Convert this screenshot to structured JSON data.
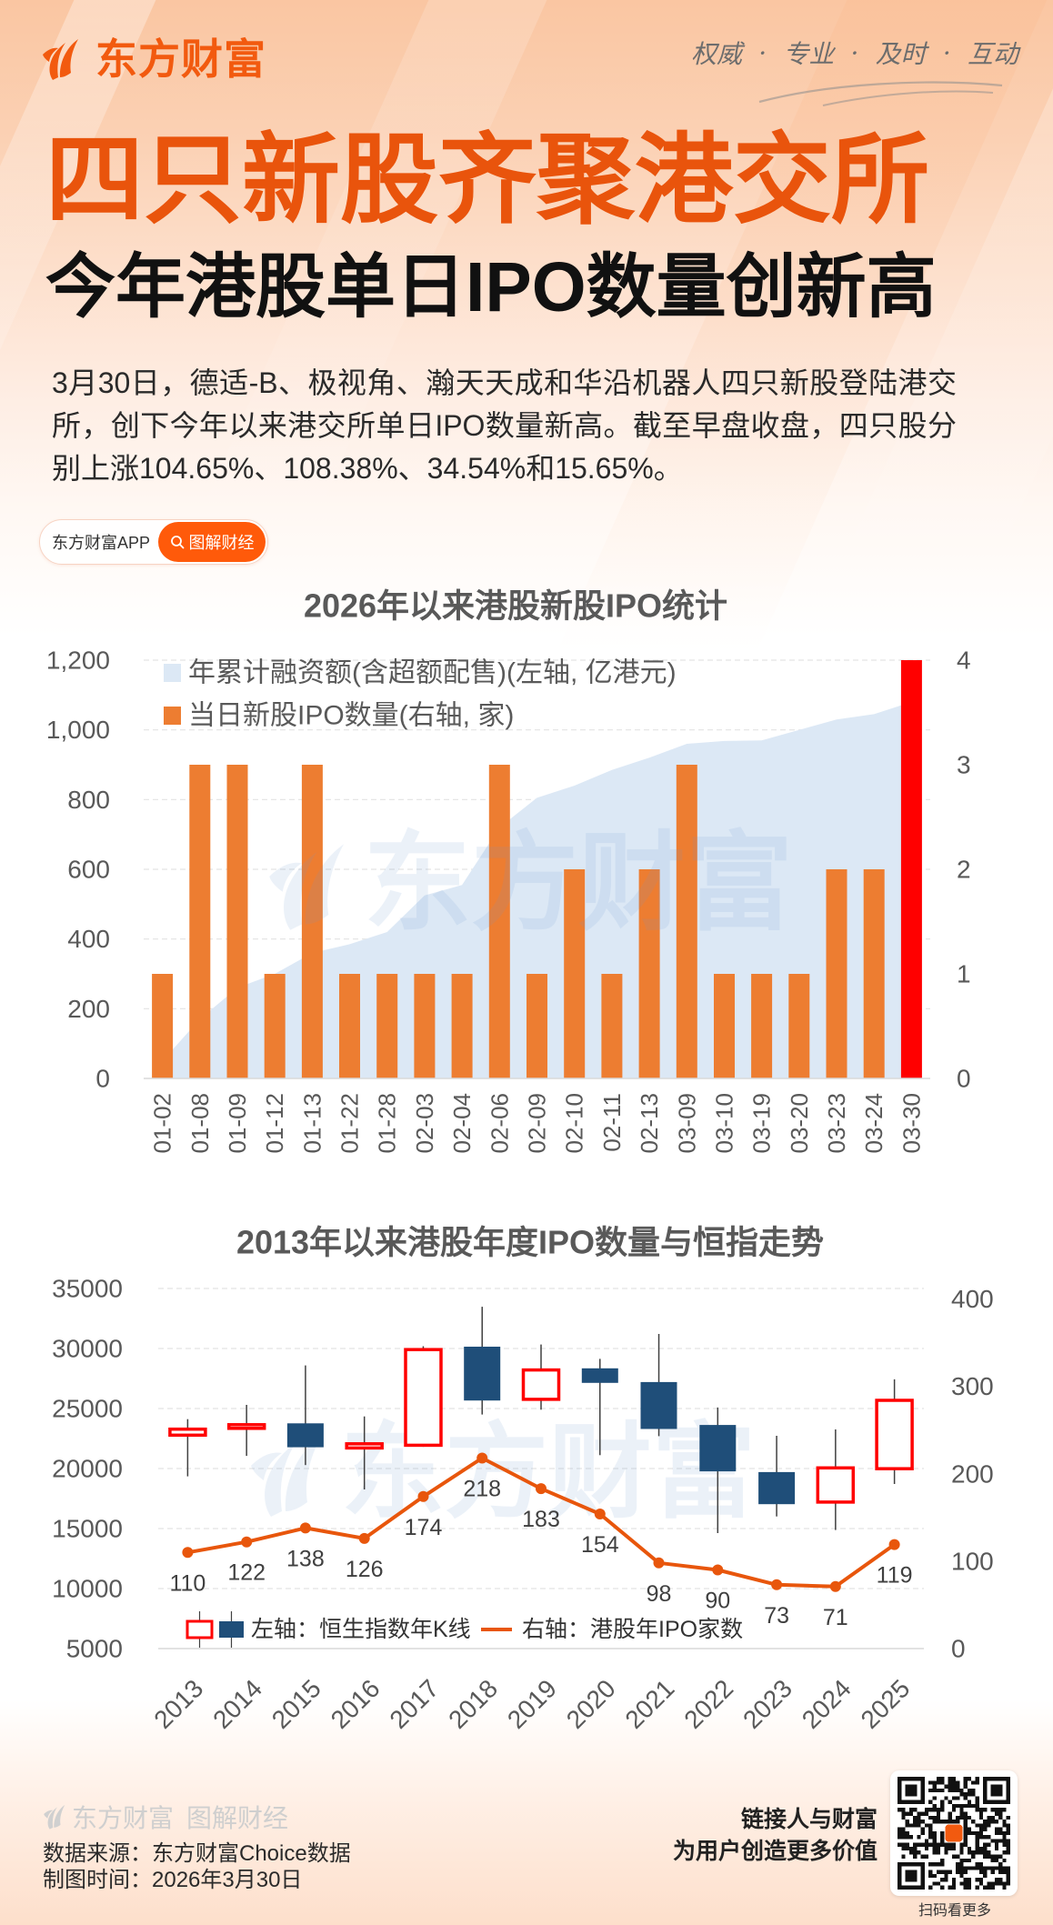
{
  "header": {
    "brand": "东方财富",
    "slogan": [
      "权威",
      "专业",
      "及时",
      "互动"
    ],
    "slogan_separator": "·"
  },
  "headline": {
    "title": "四只新股齐聚港交所",
    "subtitle": "今年港股单日IPO数量创新高"
  },
  "summary": "3月30日，德适-B、极视角、瀚天天成和华沿机器人四只新股登陆港交所，创下今年以来港交所单日IPO数量新高。截至早盘收盘，四只股分别上涨104.65%、108.38%、34.54%和15.65%。",
  "tag_pill": {
    "source": "东方财富APP",
    "column": "图解财经",
    "icon": "search-icon"
  },
  "chart_watermark": "东方财富",
  "colors": {
    "brand": "#f25a0f",
    "headline": "#e9540c",
    "pill": "#ff5a0a"
  },
  "chart_data": [
    {
      "type": "bar",
      "title": "2026年以来港股新股IPO统计",
      "xlabel": "",
      "ylabel": "",
      "categories": [
        "01-02",
        "01-08",
        "01-09",
        "01-12",
        "01-13",
        "01-22",
        "01-28",
        "02-03",
        "02-04",
        "02-06",
        "02-09",
        "02-10",
        "02-11",
        "02-13",
        "03-09",
        "03-10",
        "03-19",
        "03-20",
        "03-23",
        "03-24",
        "03-30"
      ],
      "series": [
        {
          "name": "年累计融资额(含超额配售)(左轴, 亿港元)",
          "type": "area",
          "axis": "left",
          "unit": "亿港元",
          "color": "#dce8f5",
          "values": [
            50,
            170,
            260,
            300,
            360,
            385,
            420,
            525,
            555,
            720,
            805,
            840,
            885,
            920,
            960,
            968,
            970,
            1000,
            1030,
            1045,
            1080
          ]
        },
        {
          "name": "当日新股IPO数量(右轴, 家)",
          "type": "bar",
          "axis": "right",
          "unit": "家",
          "color": "#ed7d31",
          "highlight_color": "#ff0000",
          "highlight_category": "03-30",
          "values": [
            1,
            3,
            3,
            1,
            3,
            1,
            1,
            1,
            1,
            3,
            1,
            2,
            1,
            2,
            3,
            1,
            1,
            1,
            2,
            2,
            4
          ]
        }
      ],
      "y_left": {
        "range": [
          0,
          1200
        ],
        "ticks": [
          {
            "value": 0,
            "label": "0"
          },
          {
            "value": 200,
            "label": "200"
          },
          {
            "value": 400,
            "label": "400"
          },
          {
            "value": 600,
            "label": "600"
          },
          {
            "value": 800,
            "label": "800"
          },
          {
            "value": 1000,
            "label": "1,000"
          },
          {
            "value": 1200,
            "label": "1,200"
          }
        ]
      },
      "y_right": {
        "range": [
          0,
          4
        ],
        "ticks": [
          {
            "value": 0,
            "label": "0"
          },
          {
            "value": 1,
            "label": "1"
          },
          {
            "value": 2,
            "label": "2"
          },
          {
            "value": 3,
            "label": "3"
          },
          {
            "value": 4,
            "label": "4"
          }
        ]
      },
      "grid": true,
      "legend_position": "top-left"
    },
    {
      "type": "line",
      "title": "2013年以来港股年度IPO数量与恒指走势",
      "xlabel": "",
      "ylabel": "",
      "categories": [
        "2013",
        "2014",
        "2015",
        "2016",
        "2017",
        "2018",
        "2019",
        "2020",
        "2021",
        "2022",
        "2023",
        "2024",
        "2025"
      ],
      "series": [
        {
          "name": "左轴：恒生指数年K线",
          "type": "candlestick",
          "axis": "left",
          "up_color": "#ff0000",
          "down_color": "#1f4e79",
          "wick_color": "#404040",
          "ohlc": [
            {
              "open": 22780,
              "close": 23280,
              "high": 24110,
              "low": 19350
            },
            {
              "open": 23350,
              "close": 23650,
              "high": 25300,
              "low": 21050
            },
            {
              "open": 23730,
              "close": 21810,
              "high": 28590,
              "low": 20290
            },
            {
              "open": 21710,
              "close": 22060,
              "high": 24340,
              "low": 18260
            },
            {
              "open": 21940,
              "close": 29910,
              "high": 30190,
              "low": 21810
            },
            {
              "open": 30110,
              "close": 25700,
              "high": 33480,
              "low": 24500
            },
            {
              "open": 25760,
              "close": 28210,
              "high": 30330,
              "low": 24900
            },
            {
              "open": 28310,
              "close": 27170,
              "high": 29140,
              "low": 21110
            },
            {
              "open": 27170,
              "close": 23340,
              "high": 31210,
              "low": 22700
            },
            {
              "open": 23590,
              "close": 19800,
              "high": 25080,
              "low": 14620
            },
            {
              "open": 19670,
              "close": 17070,
              "high": 22730,
              "low": 16010
            },
            {
              "open": 17200,
              "close": 20050,
              "high": 23260,
              "low": 14880
            },
            {
              "open": 19980,
              "close": 25680,
              "high": 27430,
              "low": 18710
            }
          ]
        },
        {
          "name": "右轴：港股年IPO家数",
          "type": "line",
          "axis": "right",
          "color": "#e8560c",
          "values": [
            110,
            122,
            138,
            126,
            174,
            218,
            183,
            154,
            98,
            90,
            73,
            71,
            119
          ]
        }
      ],
      "y_left": {
        "range": [
          5000,
          35000
        ],
        "ticks": [
          {
            "value": 5000,
            "label": "5000"
          },
          {
            "value": 10000,
            "label": "10000"
          },
          {
            "value": 15000,
            "label": "15000"
          },
          {
            "value": 20000,
            "label": "20000"
          },
          {
            "value": 25000,
            "label": "25000"
          },
          {
            "value": 30000,
            "label": "30000"
          },
          {
            "value": 35000,
            "label": "35000"
          }
        ]
      },
      "y_right": {
        "range": [
          0,
          412
        ],
        "ticks": [
          {
            "value": 0,
            "label": "0"
          },
          {
            "value": 100,
            "label": "100"
          },
          {
            "value": 200,
            "label": "200"
          },
          {
            "value": 300,
            "label": "300"
          },
          {
            "value": 400,
            "label": "400"
          }
        ]
      },
      "grid": true,
      "legend_position": "bottom-left"
    }
  ],
  "footer": {
    "watermark_brand": "东方财富",
    "watermark_column": "图解财经",
    "data_source": "数据来源：东方财富Choice数据",
    "made_time": "制图时间：2026年3月30日",
    "slogan_line1": "链接人与财富",
    "slogan_line2": "为用户创造更多价值",
    "qr_caption": "扫码看更多"
  }
}
